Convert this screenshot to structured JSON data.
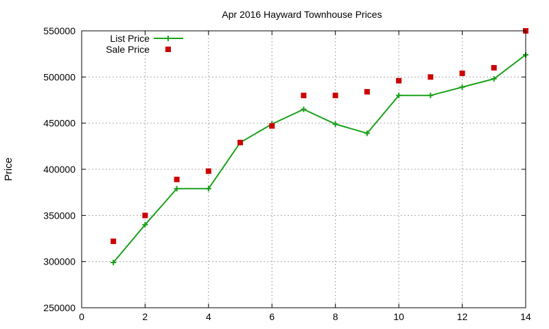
{
  "chart_data": {
    "type": "line",
    "title": "Apr 2016 Hayward Townhouse Prices",
    "xlabel": "",
    "ylabel": "Price",
    "xlim": [
      0,
      14
    ],
    "ylim": [
      250000,
      550000
    ],
    "xticks": [
      0,
      2,
      4,
      6,
      8,
      10,
      12,
      14
    ],
    "yticks": [
      250000,
      300000,
      350000,
      400000,
      450000,
      500000,
      550000
    ],
    "grid": true,
    "legend_position": "top-left",
    "series": [
      {
        "name": "List Price",
        "style": "line+marker",
        "marker": "plus",
        "color": "#1aa01a",
        "x": [
          1,
          2,
          3,
          4,
          5,
          6,
          7,
          8,
          9,
          10,
          11,
          12,
          13,
          14
        ],
        "y": [
          299000,
          340000,
          379000,
          379000,
          429000,
          449000,
          465000,
          449000,
          439000,
          480000,
          480000,
          489000,
          498000,
          524000
        ]
      },
      {
        "name": "Sale Price",
        "style": "marker",
        "marker": "square",
        "color": "#cc0000",
        "x": [
          1,
          2,
          3,
          4,
          5,
          6,
          7,
          8,
          9,
          10,
          11,
          12,
          13,
          14
        ],
        "y": [
          322000,
          350000,
          389000,
          398000,
          429000,
          447000,
          480000,
          480000,
          484000,
          496000,
          500000,
          504000,
          510000,
          550000
        ]
      }
    ]
  }
}
